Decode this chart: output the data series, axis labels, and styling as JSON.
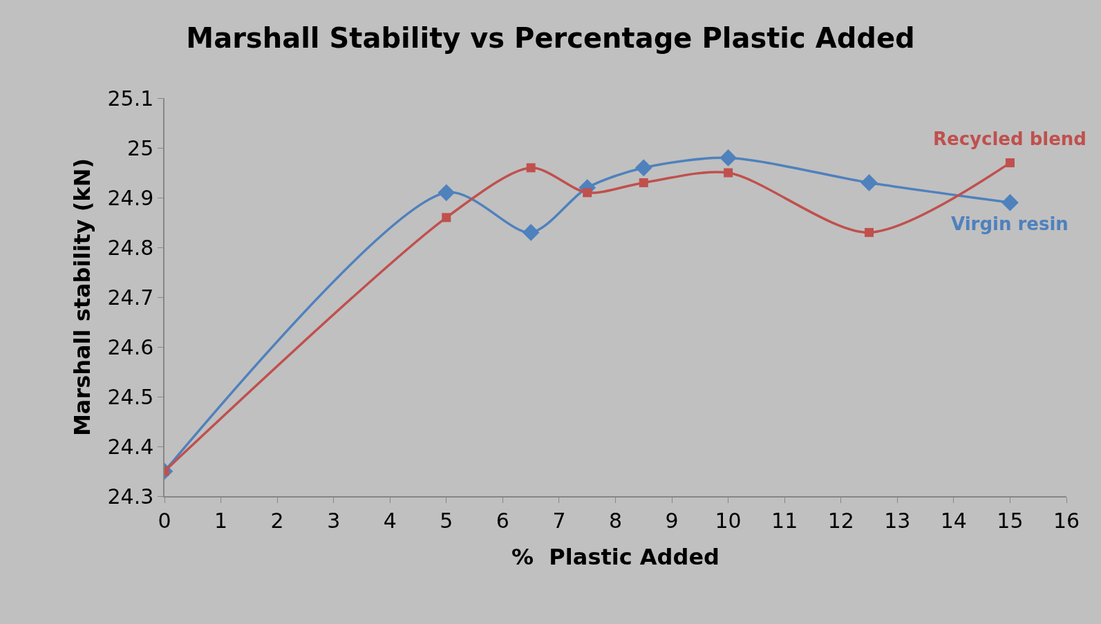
{
  "chart_data": {
    "type": "line",
    "title": "Marshall Stability vs Percentage Plastic Added",
    "xlabel": "%  Plastic Added",
    "ylabel": "Marshall stability (kN)",
    "x": [
      0,
      5,
      6.5,
      7.5,
      8.5,
      10,
      12.5,
      15
    ],
    "series": [
      {
        "name": "Virgin resin",
        "color": "#4f81bd",
        "marker": "diamond",
        "values": [
          24.35,
          24.91,
          24.83,
          24.92,
          24.96,
          24.98,
          24.93,
          24.89
        ]
      },
      {
        "name": "Recycled blend",
        "color": "#c0504d",
        "marker": "square",
        "values": [
          24.35,
          24.86,
          24.96,
          24.91,
          24.93,
          24.95,
          24.83,
          24.97
        ]
      }
    ],
    "xlim": [
      0,
      16
    ],
    "xticks": [
      0,
      1,
      2,
      3,
      4,
      5,
      6,
      7,
      8,
      9,
      10,
      11,
      12,
      13,
      14,
      15,
      16
    ],
    "ylim": [
      24.3,
      25.1
    ],
    "yticks": [
      24.3,
      24.4,
      24.5,
      24.6,
      24.7,
      24.8,
      24.9,
      25,
      25.1
    ],
    "grid": false,
    "legend": false
  }
}
